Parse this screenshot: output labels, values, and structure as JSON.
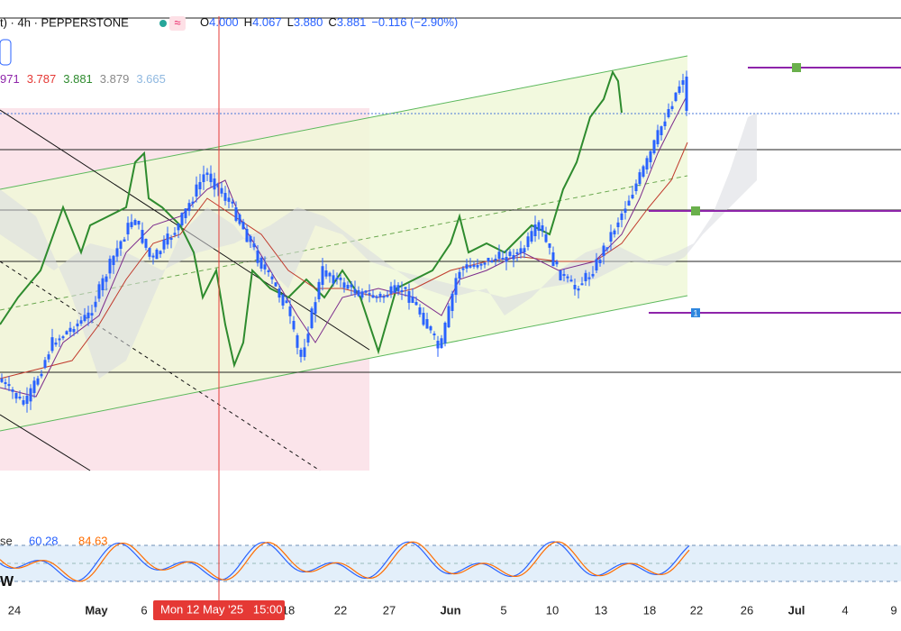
{
  "header": {
    "symbol": "t) · 4h · PEPPERSTONE",
    "icon": "≈",
    "open_label": "O",
    "open": "4.000",
    "high_label": "H",
    "high": "4.067",
    "low_label": "L",
    "low": "3.880",
    "close_label": "C",
    "close": "3.881",
    "change": "−0.116 (−2.90%)"
  },
  "indicator": {
    "values": [
      "971",
      "3.787",
      "3.881",
      "3.879",
      "3.665"
    ]
  },
  "stoch": {
    "name": "se",
    "k": "60.28",
    "d": "84.63",
    "extra": "W"
  },
  "markers": {
    "box": "1"
  },
  "x_axis": {
    "labels": [
      "24",
      "May",
      "6",
      "18",
      "22",
      "27",
      "Jun",
      "5",
      "10",
      "13",
      "18",
      "22",
      "26",
      "Jul",
      "4",
      "9"
    ]
  },
  "crosshair": {
    "label": "Mon 12 May '25   15:00"
  }
}
